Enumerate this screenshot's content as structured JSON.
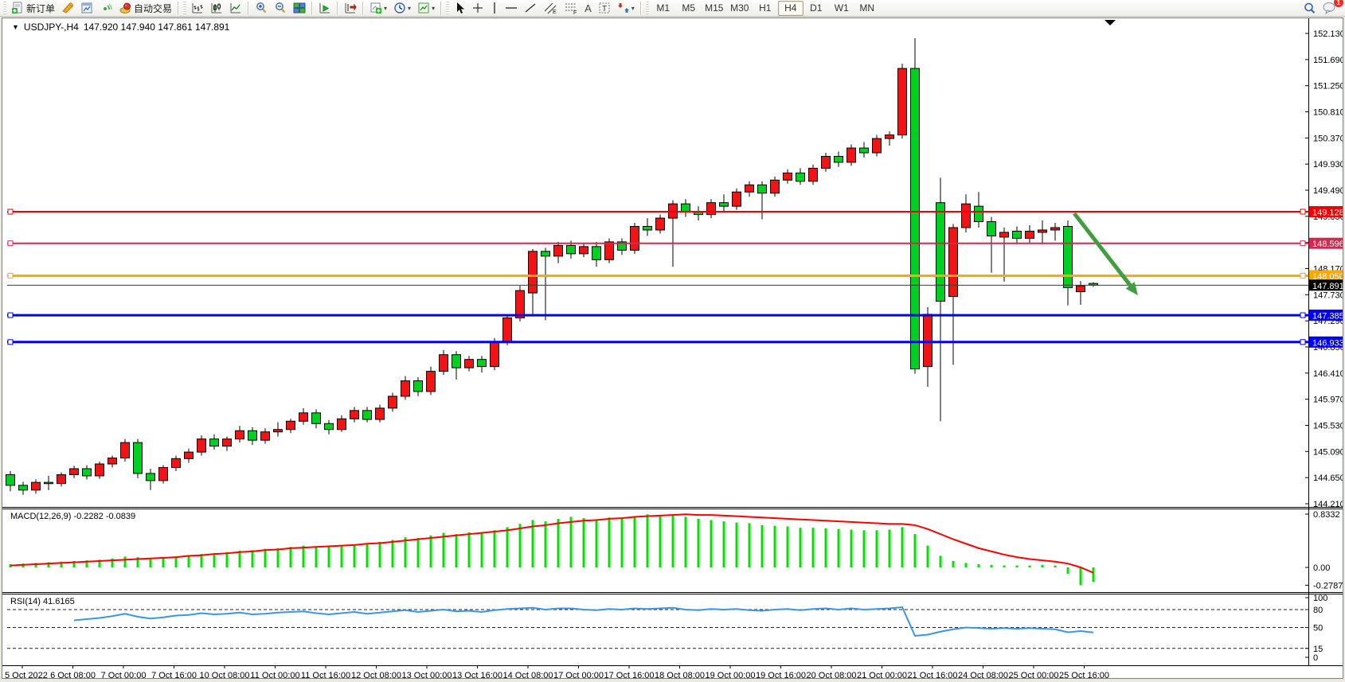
{
  "toolbar": {
    "new_order_label": "新订单",
    "auto_trading_label": "自动交易",
    "icons": [
      "new-order-icon",
      "crayon-icon",
      "charts-window-icon",
      "signal-icon",
      "auto-trading-icon",
      "bar-chart-icon",
      "candlestick-chart-icon",
      "line-chart-icon",
      "zoom-in-icon",
      "zoom-out-icon",
      "tile-windows-icon",
      "auto-scroll-icon",
      "chart-shift-icon",
      "add-indicator-icon",
      "periods-clock-icon",
      "templates-icon",
      "cursor-icon",
      "crosshair-icon",
      "vertical-line-icon",
      "horizontal-line-icon",
      "trendline-icon",
      "equidistant-channel-icon",
      "fibonacci-icon",
      "text-icon",
      "text-label-icon",
      "arrows-icon",
      "search-icon",
      "comment-icon"
    ],
    "timeframes": [
      {
        "label": "M1",
        "active": false
      },
      {
        "label": "M5",
        "active": false
      },
      {
        "label": "M15",
        "active": false
      },
      {
        "label": "M30",
        "active": false
      },
      {
        "label": "H1",
        "active": false
      },
      {
        "label": "H4",
        "active": true
      },
      {
        "label": "D1",
        "active": false
      },
      {
        "label": "W1",
        "active": false
      },
      {
        "label": "MN",
        "active": false
      }
    ],
    "notification_badge": "1",
    "glyphs": {
      "dropdown": "▾",
      "crosshair": "+",
      "vline": "│",
      "hline": "—",
      "trendline": "╱",
      "text": "A",
      "text_label": "T"
    }
  },
  "chart": {
    "title": {
      "collapse_glyph": "▼",
      "symbol": "USDJPY-,H4",
      "quotes": "147.920 147.940 147.861 147.891"
    }
  },
  "chart_data": {
    "type": "candlestick",
    "symbol": "USDJPY-",
    "timeframe": "H4",
    "quote": {
      "open": "147.920",
      "high": "147.940",
      "low": "147.861",
      "close": "147.891"
    },
    "colors": {
      "up_candle": "#f01414",
      "down_candle": "#00d020",
      "wick": "#000000",
      "macd_hist": "#00e400",
      "macd_signal": "#ff0000",
      "rsi_line": "#3a96e8",
      "arrow": "#3f9e3f"
    },
    "y_axis": {
      "ticks": [
        "152.130",
        "151.690",
        "151.250",
        "150.810",
        "150.370",
        "149.930",
        "149.490",
        "149.050",
        "148.610",
        "148.170",
        "147.730",
        "147.290",
        "146.850",
        "146.410",
        "145.970",
        "145.530",
        "145.090",
        "144.650",
        "144.210"
      ]
    },
    "time_axis": [
      "5 Oct 2022",
      "6 Oct 08:00",
      "7 Oct 00:00",
      "7 Oct 16:00",
      "10 Oct 08:00",
      "11 Oct 00:00",
      "11 Oct 16:00",
      "12 Oct 08:00",
      "13 Oct 00:00",
      "13 Oct 16:00",
      "14 Oct 08:00",
      "17 Oct 00:00",
      "17 Oct 16:00",
      "18 Oct 08:00",
      "19 Oct 00:00",
      "19 Oct 16:00",
      "20 Oct 08:00",
      "21 Oct 00:00",
      "21 Oct 16:00",
      "24 Oct 08:00",
      "25 Oct 00:00",
      "25 Oct 16:00"
    ],
    "hlines": [
      {
        "price": 149.128,
        "label": "149.128",
        "color": "#ee0000",
        "width": 2,
        "handles": true
      },
      {
        "price": 148.596,
        "label": "148.596",
        "color": "#d02a50",
        "width": 2,
        "handles": true
      },
      {
        "price": 148.05,
        "label": "148.050",
        "color": "#ffa800",
        "width": 3,
        "handles": true
      },
      {
        "price": 147.891,
        "label": "147.891",
        "color": "#3c3c3c",
        "width": 1,
        "label_bg": "#000000",
        "handles": false
      },
      {
        "price": 147.385,
        "label": "147.385",
        "color": "#0000ee",
        "width": 3,
        "handles": true
      },
      {
        "price": 146.933,
        "label": "146.933",
        "color": "#0000ee",
        "width": 3,
        "handles": true
      }
    ],
    "arrow": {
      "from": {
        "bar": 83.5,
        "price": 149.1
      },
      "to": {
        "bar": 88.5,
        "price": 147.72
      }
    },
    "ohlc": [
      [
        144.7,
        144.76,
        144.42,
        144.52
      ],
      [
        144.52,
        144.58,
        144.36,
        144.44
      ],
      [
        144.44,
        144.62,
        144.38,
        144.57
      ],
      [
        144.57,
        144.68,
        144.44,
        144.55
      ],
      [
        144.55,
        144.74,
        144.5,
        144.7
      ],
      [
        144.7,
        144.85,
        144.64,
        144.8
      ],
      [
        144.8,
        144.86,
        144.62,
        144.68
      ],
      [
        144.68,
        144.92,
        144.63,
        144.88
      ],
      [
        144.88,
        145.02,
        144.82,
        144.98
      ],
      [
        144.98,
        145.3,
        144.92,
        145.24
      ],
      [
        145.24,
        145.3,
        144.64,
        144.72
      ],
      [
        144.72,
        144.8,
        144.44,
        144.6
      ],
      [
        144.6,
        144.86,
        144.55,
        144.82
      ],
      [
        144.82,
        145.02,
        144.76,
        144.97
      ],
      [
        144.97,
        145.14,
        144.9,
        145.08
      ],
      [
        145.08,
        145.36,
        145.02,
        145.3
      ],
      [
        145.3,
        145.38,
        145.12,
        145.18
      ],
      [
        145.18,
        145.34,
        145.1,
        145.3
      ],
      [
        145.3,
        145.52,
        145.24,
        145.44
      ],
      [
        145.44,
        145.5,
        145.2,
        145.28
      ],
      [
        145.28,
        145.48,
        145.22,
        145.42
      ],
      [
        145.42,
        145.58,
        145.34,
        145.46
      ],
      [
        145.46,
        145.64,
        145.4,
        145.6
      ],
      [
        145.6,
        145.82,
        145.54,
        145.74
      ],
      [
        145.74,
        145.8,
        145.48,
        145.56
      ],
      [
        145.56,
        145.62,
        145.38,
        145.46
      ],
      [
        145.46,
        145.7,
        145.42,
        145.64
      ],
      [
        145.64,
        145.84,
        145.58,
        145.78
      ],
      [
        145.78,
        145.84,
        145.58,
        145.63
      ],
      [
        145.63,
        145.88,
        145.58,
        145.82
      ],
      [
        145.82,
        146.08,
        145.76,
        146.02
      ],
      [
        146.02,
        146.36,
        145.96,
        146.28
      ],
      [
        146.28,
        146.34,
        146.02,
        146.1
      ],
      [
        146.1,
        146.52,
        146.04,
        146.44
      ],
      [
        146.44,
        146.8,
        146.38,
        146.72
      ],
      [
        146.72,
        146.78,
        146.3,
        146.5
      ],
      [
        146.5,
        146.7,
        146.44,
        146.64
      ],
      [
        146.64,
        146.7,
        146.42,
        146.52
      ],
      [
        146.52,
        147.0,
        146.46,
        146.94
      ],
      [
        146.94,
        147.4,
        146.88,
        147.34
      ],
      [
        147.34,
        147.88,
        147.28,
        147.8
      ],
      [
        147.76,
        148.5,
        147.4,
        148.46
      ],
      [
        148.46,
        148.52,
        147.3,
        148.38
      ],
      [
        148.38,
        148.62,
        148.26,
        148.56
      ],
      [
        148.56,
        148.64,
        148.34,
        148.42
      ],
      [
        148.42,
        148.6,
        148.36,
        148.54
      ],
      [
        148.54,
        148.62,
        148.2,
        148.32
      ],
      [
        148.32,
        148.68,
        148.26,
        148.62
      ],
      [
        148.62,
        148.68,
        148.4,
        148.48
      ],
      [
        148.48,
        148.94,
        148.42,
        148.88
      ],
      [
        148.88,
        149.02,
        148.72,
        148.82
      ],
      [
        148.82,
        149.08,
        148.76,
        149.02
      ],
      [
        149.02,
        149.32,
        148.2,
        149.26
      ],
      [
        149.26,
        149.34,
        149.04,
        149.12
      ],
      [
        149.12,
        149.22,
        148.98,
        149.08
      ],
      [
        149.08,
        149.34,
        149.02,
        149.28
      ],
      [
        149.28,
        149.42,
        149.14,
        149.22
      ],
      [
        149.22,
        149.52,
        149.16,
        149.46
      ],
      [
        149.46,
        149.64,
        149.38,
        149.58
      ],
      [
        149.58,
        149.64,
        149.0,
        149.44
      ],
      [
        149.44,
        149.72,
        149.38,
        149.66
      ],
      [
        149.66,
        149.84,
        149.6,
        149.78
      ],
      [
        149.78,
        149.86,
        149.58,
        149.64
      ],
      [
        149.64,
        149.92,
        149.58,
        149.86
      ],
      [
        149.86,
        150.12,
        149.8,
        150.06
      ],
      [
        150.06,
        150.14,
        149.88,
        149.96
      ],
      [
        149.96,
        150.26,
        149.9,
        150.2
      ],
      [
        150.2,
        150.3,
        150.04,
        150.12
      ],
      [
        150.12,
        150.42,
        150.06,
        150.36
      ],
      [
        150.36,
        150.48,
        150.24,
        150.42
      ],
      [
        150.42,
        151.62,
        150.36,
        151.54
      ],
      [
        151.54,
        152.05,
        146.4,
        146.48
      ],
      [
        146.52,
        147.52,
        146.18,
        147.4
      ],
      [
        149.28,
        149.7,
        145.6,
        147.62
      ],
      [
        147.7,
        148.92,
        146.55,
        148.86
      ],
      [
        148.86,
        149.42,
        148.78,
        149.26
      ],
      [
        149.22,
        149.46,
        148.86,
        148.96
      ],
      [
        148.96,
        149.04,
        148.1,
        148.72
      ],
      [
        148.7,
        148.86,
        147.95,
        148.78
      ],
      [
        148.8,
        148.88,
        148.58,
        148.68
      ],
      [
        148.68,
        148.9,
        148.6,
        148.8
      ],
      [
        148.78,
        148.98,
        148.58,
        148.82
      ],
      [
        148.82,
        148.94,
        148.64,
        148.86
      ],
      [
        148.88,
        148.98,
        147.55,
        147.85
      ],
      [
        147.78,
        147.96,
        147.56,
        147.88
      ],
      [
        147.92,
        147.94,
        147.861,
        147.891
      ]
    ],
    "macd": {
      "display": "MACD(12,26,9) -0.2282 -0.0839",
      "params": "12,26,9",
      "value": -0.2282,
      "signal_value": -0.0839,
      "axis_labels": [
        "0.8332",
        "0.00",
        "-0.2787"
      ],
      "axis_values": [
        0.8332,
        0.0,
        -0.2787
      ],
      "histogram": [
        0.05,
        0.06,
        0.07,
        0.08,
        0.09,
        0.1,
        0.11,
        0.12,
        0.14,
        0.17,
        0.16,
        0.14,
        0.15,
        0.17,
        0.19,
        0.21,
        0.22,
        0.24,
        0.26,
        0.27,
        0.29,
        0.3,
        0.32,
        0.34,
        0.33,
        0.32,
        0.34,
        0.36,
        0.38,
        0.4,
        0.43,
        0.47,
        0.46,
        0.5,
        0.54,
        0.52,
        0.55,
        0.54,
        0.58,
        0.63,
        0.68,
        0.74,
        0.72,
        0.76,
        0.79,
        0.77,
        0.75,
        0.78,
        0.76,
        0.8,
        0.83,
        0.81,
        0.82,
        0.79,
        0.76,
        0.74,
        0.72,
        0.7,
        0.69,
        0.66,
        0.65,
        0.64,
        0.62,
        0.62,
        0.61,
        0.6,
        0.59,
        0.58,
        0.58,
        0.59,
        0.63,
        0.52,
        0.34,
        0.18,
        0.1,
        0.07,
        0.05,
        0.04,
        0.03,
        0.03,
        0.03,
        0.04,
        0.03,
        -0.1,
        -0.2787,
        -0.2282
      ],
      "signal": [
        0.03,
        0.04,
        0.05,
        0.06,
        0.07,
        0.08,
        0.09,
        0.1,
        0.11,
        0.12,
        0.13,
        0.14,
        0.15,
        0.16,
        0.18,
        0.19,
        0.21,
        0.22,
        0.24,
        0.25,
        0.27,
        0.28,
        0.3,
        0.31,
        0.32,
        0.33,
        0.34,
        0.35,
        0.37,
        0.38,
        0.4,
        0.42,
        0.44,
        0.46,
        0.48,
        0.5,
        0.52,
        0.54,
        0.56,
        0.58,
        0.61,
        0.64,
        0.66,
        0.69,
        0.71,
        0.73,
        0.74,
        0.76,
        0.77,
        0.79,
        0.8,
        0.81,
        0.82,
        0.83,
        0.82,
        0.82,
        0.81,
        0.8,
        0.79,
        0.78,
        0.77,
        0.76,
        0.75,
        0.74,
        0.73,
        0.72,
        0.71,
        0.7,
        0.69,
        0.68,
        0.68,
        0.66,
        0.6,
        0.52,
        0.44,
        0.37,
        0.3,
        0.25,
        0.2,
        0.16,
        0.13,
        0.11,
        0.09,
        0.06,
        0.0,
        -0.0839
      ]
    },
    "rsi": {
      "display": "RSI(14) 41.6165",
      "period": "14",
      "value": 41.6165,
      "axis_labels": [
        "100",
        "80",
        "50",
        "15",
        "0"
      ],
      "axis_values": [
        100,
        80,
        50,
        15,
        0
      ],
      "dashed_levels": [
        80,
        50,
        15
      ],
      "values": [
        null,
        null,
        null,
        null,
        null,
        62,
        64,
        66,
        69,
        73,
        68,
        65,
        67,
        70,
        71,
        74,
        72,
        73,
        75,
        72,
        73,
        75,
        76,
        77,
        74,
        72,
        74,
        76,
        73,
        75,
        77,
        79,
        76,
        78,
        80,
        77,
        78,
        76,
        79,
        81,
        82,
        83,
        80,
        82,
        82,
        80,
        79,
        81,
        80,
        82,
        81,
        82,
        83,
        80,
        79,
        81,
        80,
        81,
        79,
        78,
        80,
        81,
        79,
        81,
        82,
        80,
        82,
        80,
        81,
        82,
        84,
        36,
        38,
        43,
        47,
        50,
        49,
        48,
        49,
        48,
        49,
        48,
        47,
        42,
        44,
        41.6
      ]
    }
  }
}
